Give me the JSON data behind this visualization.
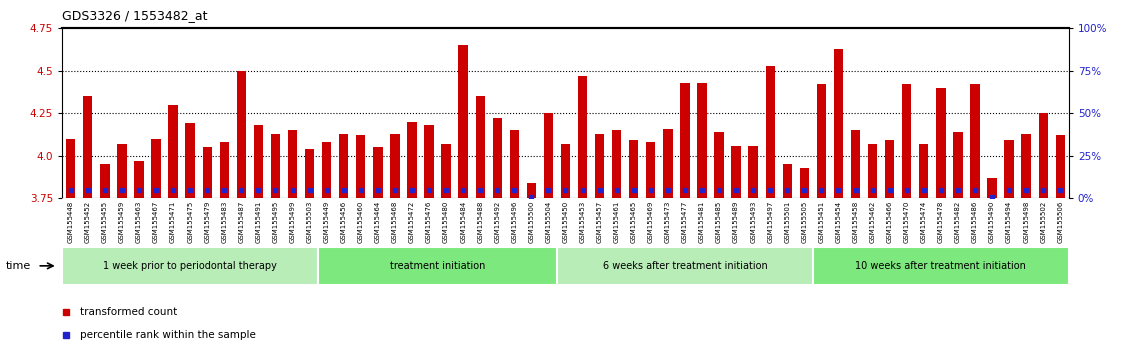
{
  "title": "GDS3326 / 1553482_at",
  "ylim_left": [
    3.75,
    4.75
  ],
  "ylim_right": [
    0,
    100
  ],
  "yticks_left": [
    3.75,
    4.0,
    4.25,
    4.5,
    4.75
  ],
  "yticks_right": [
    0,
    25,
    50,
    75,
    100
  ],
  "ytick_labels_right": [
    "0%",
    "25%",
    "50%",
    "75%",
    "100%"
  ],
  "hlines": [
    4.0,
    4.25,
    4.5
  ],
  "bar_color": "#cc0000",
  "dot_color": "#2222cc",
  "bar_baseline": 3.75,
  "samples": [
    "GSM155448",
    "GSM155452",
    "GSM155455",
    "GSM155459",
    "GSM155463",
    "GSM155467",
    "GSM155471",
    "GSM155475",
    "GSM155479",
    "GSM155483",
    "GSM155487",
    "GSM155491",
    "GSM155495",
    "GSM155499",
    "GSM155503",
    "GSM155449",
    "GSM155456",
    "GSM155460",
    "GSM155464",
    "GSM155468",
    "GSM155472",
    "GSM155476",
    "GSM155480",
    "GSM155484",
    "GSM155488",
    "GSM155492",
    "GSM155496",
    "GSM155500",
    "GSM155504",
    "GSM155450",
    "GSM155453",
    "GSM155457",
    "GSM155461",
    "GSM155465",
    "GSM155469",
    "GSM155473",
    "GSM155477",
    "GSM155481",
    "GSM155485",
    "GSM155489",
    "GSM155493",
    "GSM155497",
    "GSM155501",
    "GSM155505",
    "GSM155451",
    "GSM155454",
    "GSM155458",
    "GSM155462",
    "GSM155466",
    "GSM155470",
    "GSM155474",
    "GSM155478",
    "GSM155482",
    "GSM155486",
    "GSM155490",
    "GSM155494",
    "GSM155498",
    "GSM155502",
    "GSM155506"
  ],
  "transformed_counts": [
    4.1,
    4.35,
    3.95,
    4.07,
    3.97,
    4.1,
    4.3,
    4.19,
    4.05,
    4.08,
    4.5,
    4.18,
    4.13,
    4.15,
    4.04,
    4.08,
    4.13,
    4.12,
    4.05,
    4.13,
    4.2,
    4.18,
    4.07,
    4.65,
    4.35,
    4.22,
    4.15,
    3.84,
    4.25,
    4.07,
    4.47,
    4.13,
    4.15,
    4.09,
    4.08,
    4.16,
    4.43,
    4.43,
    4.14,
    4.06,
    4.06,
    4.53,
    3.95,
    3.93,
    4.42,
    4.63,
    4.15,
    4.07,
    4.09,
    4.42,
    4.07,
    4.4,
    4.14,
    4.42,
    3.87,
    4.09,
    4.13,
    4.25,
    4.12
  ],
  "percentile_ranks": [
    5,
    5,
    5,
    5,
    5,
    5,
    5,
    5,
    5,
    5,
    5,
    5,
    5,
    5,
    5,
    5,
    5,
    5,
    5,
    5,
    5,
    5,
    5,
    5,
    5,
    5,
    5,
    1,
    5,
    5,
    5,
    5,
    5,
    5,
    5,
    5,
    5,
    5,
    5,
    5,
    5,
    5,
    5,
    5,
    5,
    5,
    5,
    5,
    5,
    5,
    5,
    5,
    5,
    5,
    1,
    5,
    5,
    5,
    5
  ],
  "groups": [
    {
      "label": "1 week prior to periodontal therapy",
      "start": 0,
      "end": 15,
      "color": "#b8edb8"
    },
    {
      "label": "treatment initiation",
      "start": 15,
      "end": 29,
      "color": "#7de87d"
    },
    {
      "label": "6 weeks after treatment initiation",
      "start": 29,
      "end": 44,
      "color": "#b8edb8"
    },
    {
      "label": "10 weeks after treatment initiation",
      "start": 44,
      "end": 59,
      "color": "#7de87d"
    }
  ],
  "background_color": "#ffffff",
  "plot_bg_color": "#ffffff",
  "tick_label_color_left": "#cc0000",
  "tick_label_color_right": "#2222cc",
  "xlabel_strip_color": "#d4d4d4",
  "legend_items": [
    {
      "color": "#cc0000",
      "label": "transformed count"
    },
    {
      "color": "#2222cc",
      "label": "percentile rank within the sample"
    }
  ]
}
